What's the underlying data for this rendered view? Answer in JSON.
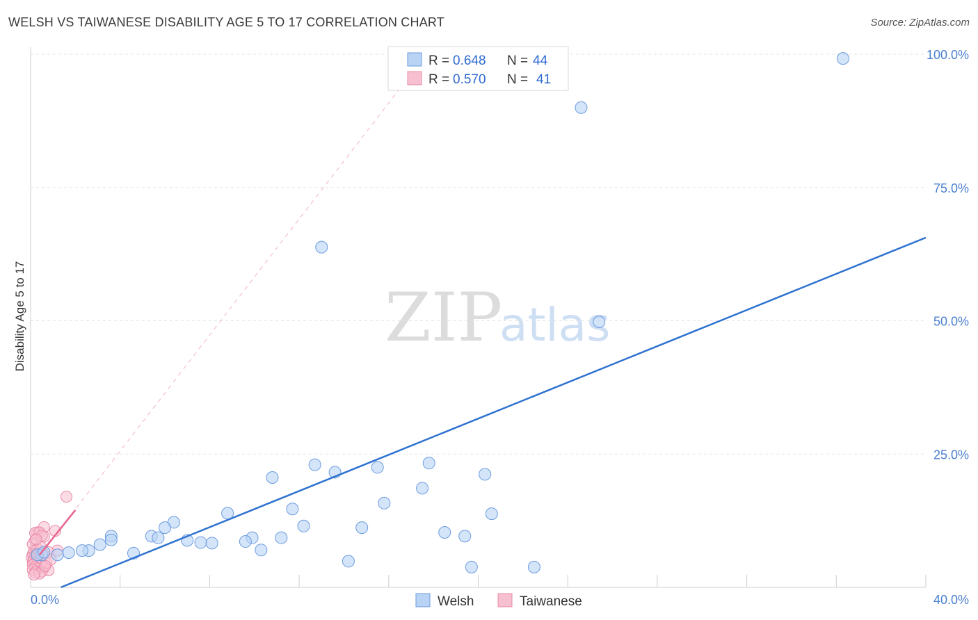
{
  "header": {
    "title": "WELSH VS TAIWANESE DISABILITY AGE 5 TO 17 CORRELATION CHART",
    "source": "Source: ZipAtlas.com"
  },
  "watermark": {
    "zip": "ZIP",
    "atlas": "atlas"
  },
  "legend": {
    "rows": [
      {
        "r_label": "R = ",
        "r_value": "0.648",
        "n_label": "N = ",
        "n_value": "44",
        "color": "#b9d3f5"
      },
      {
        "r_label": "R = ",
        "r_value": "0.570",
        "n_label": "N = ",
        "n_value": "41",
        "color": "#f7c0d0"
      }
    ]
  },
  "bottom_legend": {
    "welsh": "Welsh",
    "taiwanese": "Taiwanese"
  },
  "colors": {
    "welsh_fill": "#b9d3f5",
    "welsh_stroke": "#6b9be0",
    "welsh_line": "#2f72d0",
    "taiwanese_fill": "#f7c0d0",
    "taiwanese_stroke": "#ea8aa8",
    "taiwanese_line": "#e8638e"
  },
  "chart_data": {
    "type": "scatter",
    "title": "WELSH VS TAIWANESE DISABILITY AGE 5 TO 17 CORRELATION CHART",
    "xlabel": "",
    "ylabel": "Disability Age 5 to 17",
    "xlim": [
      0,
      40
    ],
    "ylim": [
      0,
      100
    ],
    "x_tick_labels": [
      "0.0%",
      "40.0%"
    ],
    "y_ticks": [
      25,
      50,
      75,
      100
    ],
    "y_tick_labels": [
      "25.0%",
      "50.0%",
      "75.0%",
      "100.0%"
    ],
    "grid": true,
    "legend_position": "top-center",
    "series": [
      {
        "name": "Welsh",
        "r": 0.648,
        "n": 44,
        "points": [
          [
            36.3,
            99.2
          ],
          [
            24.6,
            90.0
          ],
          [
            13.0,
            63.8
          ],
          [
            25.4,
            49.8
          ],
          [
            12.7,
            23.0
          ],
          [
            13.6,
            21.6
          ],
          [
            15.5,
            22.5
          ],
          [
            17.8,
            23.3
          ],
          [
            10.8,
            20.6
          ],
          [
            17.5,
            18.6
          ],
          [
            20.3,
            21.2
          ],
          [
            15.8,
            15.8
          ],
          [
            11.7,
            14.7
          ],
          [
            8.8,
            13.9
          ],
          [
            20.6,
            13.8
          ],
          [
            6.4,
            12.2
          ],
          [
            12.2,
            11.5
          ],
          [
            14.8,
            11.2
          ],
          [
            6.0,
            11.2
          ],
          [
            18.5,
            10.3
          ],
          [
            3.6,
            9.6
          ],
          [
            5.4,
            9.6
          ],
          [
            19.4,
            9.6
          ],
          [
            3.6,
            8.9
          ],
          [
            5.7,
            9.3
          ],
          [
            9.9,
            9.3
          ],
          [
            11.2,
            9.3
          ],
          [
            7.0,
            8.8
          ],
          [
            7.6,
            8.4
          ],
          [
            9.6,
            8.6
          ],
          [
            3.1,
            8.0
          ],
          [
            8.1,
            8.3
          ],
          [
            2.6,
            6.9
          ],
          [
            2.3,
            6.9
          ],
          [
            1.7,
            6.5
          ],
          [
            4.6,
            6.4
          ],
          [
            1.2,
            6.1
          ],
          [
            0.5,
            6.1
          ],
          [
            0.3,
            6.1
          ],
          [
            10.3,
            7.0
          ],
          [
            14.2,
            4.9
          ],
          [
            19.7,
            3.8
          ],
          [
            22.5,
            3.8
          ],
          [
            0.6,
            6.6
          ]
        ],
        "trendline": {
          "x": [
            0,
            40
          ],
          "y": [
            -2.3,
            65.6
          ]
        }
      },
      {
        "name": "Taiwanese",
        "r": 0.57,
        "n": 41,
        "points": [
          [
            1.6,
            17.0
          ],
          [
            0.6,
            11.3
          ],
          [
            0.3,
            10.3
          ],
          [
            0.2,
            10.2
          ],
          [
            0.4,
            10.3
          ],
          [
            1.1,
            10.6
          ],
          [
            0.6,
            9.5
          ],
          [
            0.5,
            9.7
          ],
          [
            0.2,
            8.8
          ],
          [
            0.1,
            8.1
          ],
          [
            0.3,
            7.2
          ],
          [
            0.15,
            6.8
          ],
          [
            1.2,
            6.9
          ],
          [
            0.8,
            6.6
          ],
          [
            0.1,
            6.2
          ],
          [
            0.2,
            6.0
          ],
          [
            0.3,
            5.8
          ],
          [
            0.05,
            5.6
          ],
          [
            0.15,
            5.4
          ],
          [
            0.25,
            5.2
          ],
          [
            0.35,
            5.0
          ],
          [
            0.1,
            4.8
          ],
          [
            0.2,
            4.6
          ],
          [
            0.3,
            4.4
          ],
          [
            0.1,
            4.2
          ],
          [
            0.4,
            4.0
          ],
          [
            0.2,
            3.8
          ],
          [
            0.6,
            3.7
          ],
          [
            0.3,
            3.5
          ],
          [
            0.1,
            3.3
          ],
          [
            0.8,
            3.2
          ],
          [
            0.5,
            3.0
          ],
          [
            0.2,
            2.8
          ],
          [
            0.4,
            2.6
          ],
          [
            0.15,
            2.4
          ],
          [
            0.7,
            4.6
          ],
          [
            0.9,
            5.2
          ],
          [
            0.45,
            7.6
          ],
          [
            0.55,
            6.4
          ],
          [
            0.65,
            4.0
          ],
          [
            0.25,
            9.0
          ]
        ],
        "trendline": {
          "x": [
            0.4,
            2.0
          ],
          "y": [
            6.1,
            14.5
          ]
        },
        "trendline_extended": {
          "x": [
            0,
            17.5
          ],
          "y": [
            3.8,
            99.0
          ]
        }
      }
    ]
  }
}
